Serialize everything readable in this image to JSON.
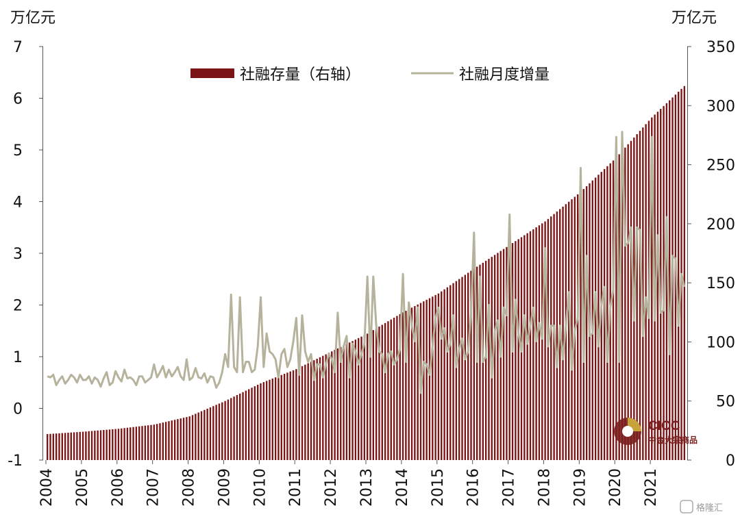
{
  "chart_data": {
    "type": "bar+line",
    "left_axis": {
      "unit": "万亿元",
      "ylim": [
        -1,
        7
      ],
      "ticks": [
        "-1",
        "0",
        "1",
        "2",
        "3",
        "4",
        "5",
        "6",
        "7"
      ]
    },
    "right_axis": {
      "unit": "万亿元",
      "ylim": [
        0,
        350
      ],
      "ticks": [
        "0",
        "50",
        "100",
        "150",
        "200",
        "250",
        "300",
        "350"
      ]
    },
    "x_axis": {
      "labels": [
        "2004",
        "2005",
        "2006",
        "2007",
        "2008",
        "2009",
        "2010",
        "2011",
        "2012",
        "2013",
        "2014",
        "2015",
        "2016",
        "2017",
        "2018",
        "2019",
        "2020",
        "2021"
      ]
    },
    "legend": {
      "placement": "top-center"
    },
    "colors": {
      "bar": "#7b1414",
      "line": "#b5b39c"
    },
    "series": [
      {
        "name": "社融存量（右轴）",
        "type": "bar",
        "axis": "right",
        "year_start_values": [
          22,
          24,
          26.5,
          30,
          37,
          50,
          65,
          77,
          92,
          107,
          125,
          141,
          162,
          182,
          202,
          227,
          256,
          290
        ],
        "final_value": 319
      },
      {
        "name": "社融月度增量",
        "type": "line",
        "axis": "left",
        "monthly_values": [
          0.62,
          0.6,
          0.65,
          0.45,
          0.55,
          0.62,
          0.48,
          0.55,
          0.65,
          0.6,
          0.5,
          0.65,
          0.55,
          0.55,
          0.62,
          0.48,
          0.6,
          0.55,
          0.42,
          0.58,
          0.7,
          0.45,
          0.5,
          0.72,
          0.6,
          0.52,
          0.75,
          0.58,
          0.6,
          0.55,
          0.45,
          0.62,
          0.62,
          0.5,
          0.55,
          0.6,
          0.85,
          0.6,
          0.7,
          0.82,
          0.6,
          0.75,
          0.62,
          0.7,
          0.8,
          0.62,
          0.55,
          0.95,
          0.55,
          0.6,
          0.78,
          0.6,
          0.58,
          0.68,
          0.5,
          0.62,
          0.6,
          0.4,
          0.5,
          0.7,
          1.05,
          0.8,
          2.2,
          0.8,
          0.7,
          2.15,
          0.7,
          0.9,
          0.9,
          0.7,
          0.75,
          1.2,
          2.15,
          0.8,
          1.45,
          1.1,
          1.05,
          0.95,
          0.6,
          1.05,
          1.15,
          0.8,
          0.95,
          1.3,
          1.75,
          0.65,
          1.8,
          1.1,
          0.9,
          1.05,
          0.55,
          0.85,
          0.85,
          0.6,
          0.85,
          1.05,
          0.95,
          0.7,
          1.85,
          0.9,
          1.2,
          1.4,
          0.6,
          1.25,
          1.1,
          0.85,
          1.05,
          1.25,
          2.55,
          1.0,
          2.55,
          1.6,
          1.1,
          1.05,
          0.7,
          1.05,
          1.1,
          0.85,
          0.95,
          1.15,
          2.6,
          0.9,
          2.05,
          1.6,
          1.3,
          1.95,
          0.3,
          0.9,
          0.85,
          0.65,
          1.2,
          1.75,
          1.95,
          1.35,
          1.55,
          1.1,
          1.25,
          1.8,
          0.8,
          1.15,
          1.35,
          0.95,
          1.1,
          1.85,
          3.4,
          0.9,
          2.55,
          0.9,
          1.0,
          2.0,
          0.6,
          1.5,
          1.7,
          1.0,
          1.95,
          1.8,
          3.75,
          1.1,
          2.1,
          1.45,
          1.1,
          1.8,
          1.25,
          1.6,
          1.95,
          1.3,
          1.65,
          1.35,
          3.1,
          1.2,
          1.6,
          1.6,
          0.8,
          1.6,
          0.95,
          1.6,
          2.25,
          0.75,
          1.5,
          1.75,
          4.65,
          0.9,
          2.95,
          1.4,
          1.45,
          2.25,
          1.2,
          2.0,
          2.35,
          0.9,
          1.95,
          2.3,
          5.25,
          0.9,
          5.35,
          3.15,
          3.2,
          3.5,
          1.7,
          3.5,
          3.45,
          1.4,
          2.15,
          1.75,
          5.25,
          1.7,
          3.35,
          1.85,
          1.9,
          3.7,
          1.05,
          2.95,
          2.9,
          1.6,
          2.6,
          2.35
        ]
      }
    ]
  },
  "watermark": {
    "title": "CICC",
    "subtitle": "中金大宗商品"
  },
  "corner_watermark": "格隆汇"
}
